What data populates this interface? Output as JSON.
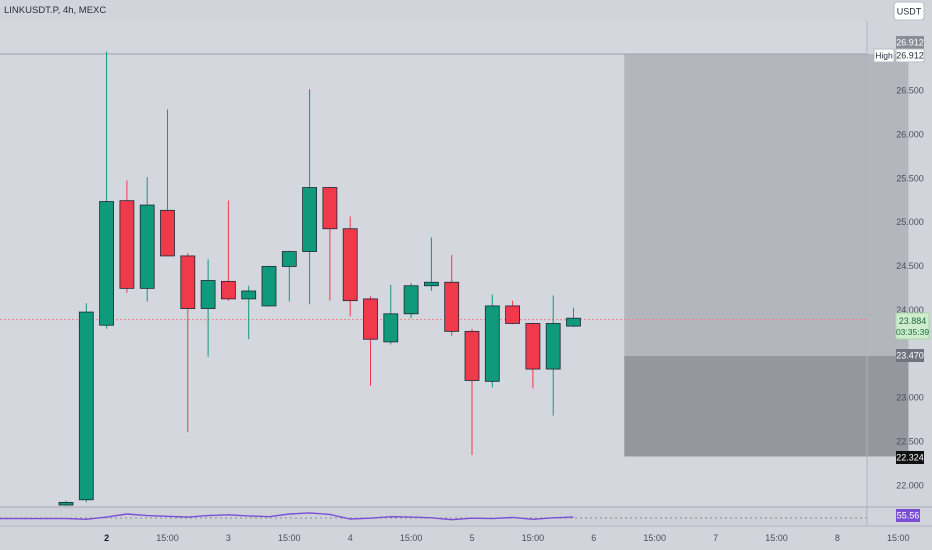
{
  "header": {
    "symbol_line": "LINKUSDT.P, 4h, MEXC",
    "currency_button": "USDT"
  },
  "price_tags": {
    "high_box": "26.912",
    "high_label": "High",
    "high_value": "26.912",
    "current_price": "23.884",
    "countdown": "03:35:39",
    "zone_top": "23.470",
    "zone_bottom": "22.324",
    "indicator_value": "55.56"
  },
  "colors": {
    "background": "#d2d4dc",
    "up": "#0e9a7b",
    "down": "#f0394a",
    "zone_upper": "#b4b6bd",
    "zone_lower": "#95979e",
    "indicator_line": "#7a4fd6",
    "current_price_tag": "#cfeccf",
    "indicator_tag": "#7a4fd6"
  },
  "chart_data": {
    "type": "candlestick",
    "timeframe": "4h",
    "y_ticks": [
      "26.500",
      "26.000",
      "25.500",
      "25.000",
      "24.500",
      "24.000",
      "23.500",
      "23.000",
      "22.500",
      "22.000"
    ],
    "y_tick_values": [
      26.5,
      26.0,
      25.5,
      25.0,
      24.5,
      24.0,
      23.5,
      23.0,
      22.5,
      22.0
    ],
    "x_ticks": [
      {
        "label": "2",
        "bar": 2,
        "bold": true
      },
      {
        "label": "15:00",
        "bar": 5
      },
      {
        "label": "3",
        "bar": 8
      },
      {
        "label": "15:00",
        "bar": 11
      },
      {
        "label": "4",
        "bar": 14
      },
      {
        "label": "15:00",
        "bar": 17
      },
      {
        "label": "5",
        "bar": 20
      },
      {
        "label": "15:00",
        "bar": 23
      },
      {
        "label": "6",
        "bar": 26
      },
      {
        "label": "15:00",
        "bar": 29
      },
      {
        "label": "7",
        "bar": 32
      },
      {
        "label": "15:00",
        "bar": 35
      },
      {
        "label": "8",
        "bar": 38
      },
      {
        "label": "15:00",
        "bar": 41
      }
    ],
    "candles": [
      {
        "o": 21.77,
        "h": 21.82,
        "l": 21.76,
        "c": 21.8
      },
      {
        "o": 21.83,
        "h": 24.07,
        "l": 21.8,
        "c": 23.97
      },
      {
        "o": 23.82,
        "h": 26.94,
        "l": 23.78,
        "c": 25.23
      },
      {
        "o": 25.24,
        "h": 25.47,
        "l": 24.19,
        "c": 24.24
      },
      {
        "o": 24.24,
        "h": 25.51,
        "l": 24.09,
        "c": 25.19
      },
      {
        "o": 25.13,
        "h": 26.28,
        "l": 24.61,
        "c": 24.61
      },
      {
        "o": 24.61,
        "h": 24.64,
        "l": 22.6,
        "c": 24.01
      },
      {
        "o": 24.01,
        "h": 24.57,
        "l": 23.46,
        "c": 24.33
      },
      {
        "o": 24.32,
        "h": 25.24,
        "l": 24.1,
        "c": 24.12
      },
      {
        "o": 24.12,
        "h": 24.27,
        "l": 23.66,
        "c": 24.21
      },
      {
        "o": 24.04,
        "h": 24.5,
        "l": 24.03,
        "c": 24.49
      },
      {
        "o": 24.49,
        "h": 24.67,
        "l": 24.09,
        "c": 24.66
      },
      {
        "o": 24.66,
        "h": 26.51,
        "l": 24.06,
        "c": 25.39
      },
      {
        "o": 25.39,
        "h": 25.4,
        "l": 24.1,
        "c": 24.92
      },
      {
        "o": 24.92,
        "h": 25.06,
        "l": 23.92,
        "c": 24.1
      },
      {
        "o": 24.12,
        "h": 24.15,
        "l": 23.13,
        "c": 23.66
      },
      {
        "o": 23.63,
        "h": 24.28,
        "l": 23.6,
        "c": 23.95
      },
      {
        "o": 23.95,
        "h": 24.3,
        "l": 23.9,
        "c": 24.27
      },
      {
        "o": 24.27,
        "h": 24.82,
        "l": 24.21,
        "c": 24.31
      },
      {
        "o": 24.31,
        "h": 24.62,
        "l": 23.7,
        "c": 23.75
      },
      {
        "o": 23.75,
        "h": 23.78,
        "l": 22.34,
        "c": 23.19
      },
      {
        "o": 23.18,
        "h": 24.17,
        "l": 23.11,
        "c": 24.04
      },
      {
        "o": 24.04,
        "h": 24.1,
        "l": 23.83,
        "c": 23.84
      },
      {
        "o": 23.84,
        "h": 23.85,
        "l": 23.1,
        "c": 23.32
      },
      {
        "o": 23.32,
        "h": 24.16,
        "l": 22.79,
        "c": 23.84
      },
      {
        "o": 23.81,
        "h": 24.02,
        "l": 23.8,
        "c": 23.9
      }
    ],
    "high_price": 26.912,
    "current_price": 23.884,
    "zones": [
      {
        "from_bar": 27.5,
        "to_bar": 41.5,
        "top": 26.912,
        "bottom": 23.47,
        "shade": "upper"
      },
      {
        "from_bar": 27.5,
        "to_bar": 41.5,
        "top": 23.47,
        "bottom": 22.324,
        "shade": "lower"
      }
    ],
    "indicator": {
      "value": 55.56,
      "values": [
        55.2,
        55.0,
        55.6,
        56.4,
        56.0,
        55.8,
        55.6,
        56.0,
        56.2,
        55.9,
        55.7,
        56.4,
        56.7,
        56.3,
        55.1,
        55.3,
        55.7,
        55.6,
        55.4,
        54.9,
        55.3,
        55.2,
        55.5,
        55.0,
        55.4,
        55.6
      ]
    }
  }
}
